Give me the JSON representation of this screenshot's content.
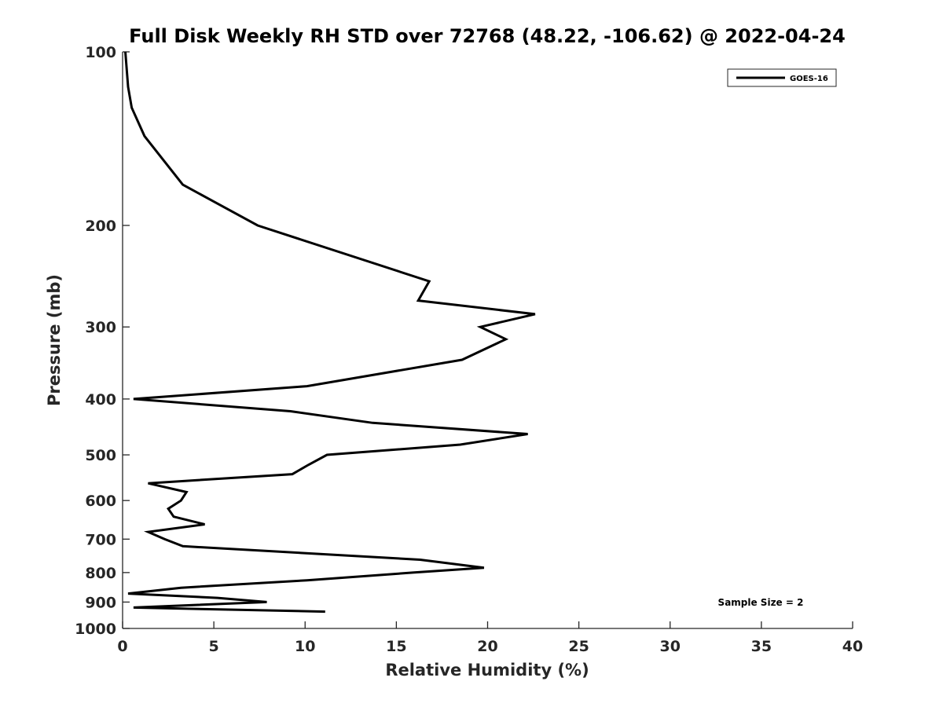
{
  "chart_data": {
    "type": "line",
    "title": "Full Disk Weekly RH STD over 72768 (48.22, -106.62) @ 2022-04-24",
    "xlabel": "Relative Humidity (%)",
    "ylabel": "Pressure (mb)",
    "xlim": [
      0,
      40
    ],
    "ylim": [
      100,
      1000
    ],
    "yscale": "log",
    "y_inverted": true,
    "grid": false,
    "legend_position": "top-right",
    "x_ticks": [
      0,
      5,
      10,
      15,
      20,
      25,
      30,
      35,
      40
    ],
    "x_tick_labels": [
      "0",
      "5",
      "10",
      "15",
      "20",
      "25",
      "30",
      "35",
      "40"
    ],
    "y_ticks": [
      100,
      200,
      300,
      400,
      500,
      600,
      700,
      800,
      900,
      1000
    ],
    "y_tick_labels": [
      "100",
      "200",
      "300",
      "400",
      "500",
      "600",
      "700",
      "800",
      "900",
      "1000"
    ],
    "series": [
      {
        "name": "GOES-16",
        "color": "#000000",
        "x": [
          0.15,
          0.3,
          0.5,
          1.2,
          3.3,
          7.4,
          16.8,
          16.2,
          22.6,
          19.6,
          21.0,
          18.6,
          10.1,
          0.6,
          9.2,
          13.7,
          22.2,
          18.5,
          11.2,
          10.2,
          9.3,
          1.4,
          3.5,
          3.2,
          2.5,
          2.8,
          4.5,
          1.4,
          2.3,
          3.3,
          16.3,
          19.8,
          15.9,
          10.1,
          3.2,
          0.3,
          5.2,
          7.9,
          0.6,
          11.1
        ],
        "y": [
          100,
          115,
          125,
          140,
          170,
          200,
          250,
          270,
          285,
          300,
          315,
          342,
          380,
          400,
          420,
          440,
          460,
          480,
          500,
          520,
          540,
          560,
          580,
          600,
          620,
          640,
          660,
          680,
          700,
          720,
          760,
          785,
          800,
          825,
          850,
          870,
          885,
          900,
          920,
          935
        ]
      }
    ],
    "annotations": [
      {
        "text": "Sample Size = 2"
      }
    ]
  }
}
